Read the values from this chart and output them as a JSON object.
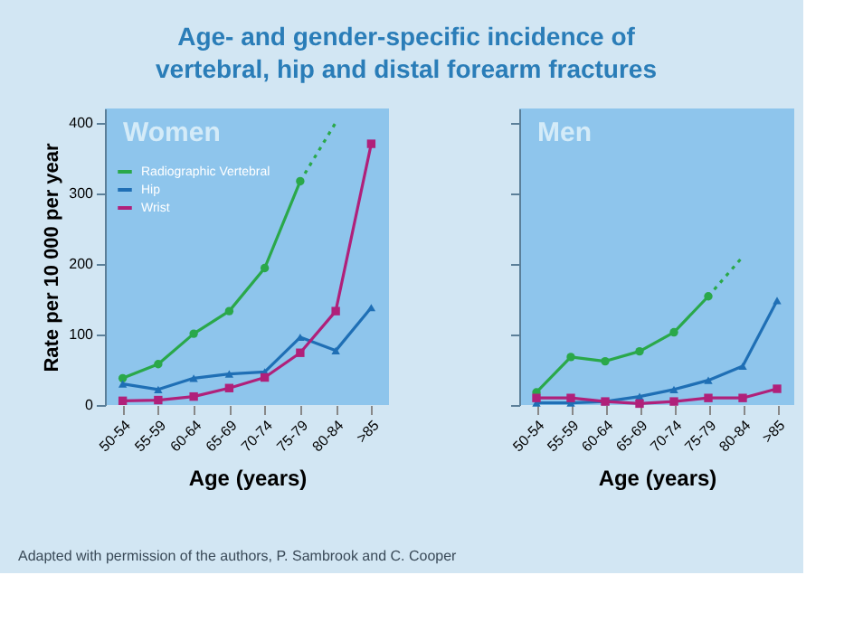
{
  "chart_data": [
    {
      "type": "line",
      "title": "Age- and gender-specific incidence of vertebral, hip and distal forearm fractures",
      "xlabel": "Age (years)",
      "ylabel": "Rate per 10 000 per year",
      "categories": [
        "50-54",
        "55-59",
        "60-64",
        "65-69",
        "70-74",
        "75-79",
        "80-84",
        ">85"
      ],
      "series": [
        {
          "name": "Radiographic Vertebral",
          "color": "#2aa84a",
          "marker": "circle",
          "values": [
            38,
            58,
            101,
            133,
            194,
            317,
            null,
            null
          ]
        },
        {
          "color": "#2aa84a",
          "marker": "none",
          "line_style": "dotted",
          "values": [
            null,
            null,
            null,
            null,
            null,
            317,
            400,
            null
          ]
        },
        {
          "name": "Hip",
          "color": "#1f6fb5",
          "marker": "triangle",
          "values": [
            30,
            22,
            38,
            44,
            47,
            96,
            77,
            138
          ]
        },
        {
          "name": "Wrist",
          "color": "#b0207a",
          "marker": "square",
          "values": [
            6,
            7,
            12,
            24,
            39,
            74,
            133,
            370
          ]
        }
      ],
      "ylim": [
        0,
        420
      ],
      "yticks": [
        0,
        100,
        200,
        300,
        400
      ],
      "grid": false,
      "legend": "top left",
      "annotations": [
        "Women",
        "Adapted with permission of the authors, P. Sambrook and C. Cooper"
      ]
    },
    {
      "type": "line",
      "xlabel": "Age (years)",
      "categories": [
        "50-54",
        "55-59",
        "60-64",
        "65-69",
        "70-74",
        "75-79",
        "80-84",
        ">85"
      ],
      "series": [
        {
          "color": "#2aa84a",
          "marker": "circle",
          "values": [
            18,
            68,
            62,
            76,
            103,
            154,
            null,
            null
          ]
        },
        {
          "color": "#2aa84a",
          "marker": "none",
          "line_style": "dotted",
          "values": [
            null,
            null,
            null,
            null,
            null,
            154,
            210,
            null
          ]
        },
        {
          "color": "#1f6fb5",
          "marker": "triangle",
          "values": [
            3,
            3,
            5,
            12,
            22,
            35,
            55,
            148
          ]
        },
        {
          "color": "#b0207a",
          "marker": "square",
          "values": [
            10,
            10,
            5,
            2,
            5,
            10,
            10,
            23
          ]
        }
      ],
      "ylim": [
        0,
        420
      ],
      "yticks": [
        0,
        100,
        200,
        300,
        400
      ],
      "grid": false,
      "tick_labels": "x",
      "legend": false,
      "annotations": [
        "Men"
      ]
    }
  ]
}
